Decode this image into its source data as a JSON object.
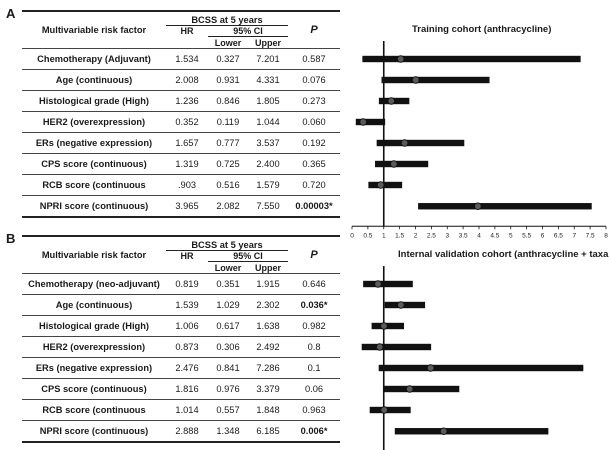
{
  "panels": [
    {
      "letter": "A",
      "plot_title": "Training cohort (anthracycline)",
      "header": {
        "factor": "Multivariable risk factor",
        "bcss": "BCSS at 5 years",
        "hr": "HR",
        "ci": "95% CI",
        "lower": "Lower",
        "upper": "Upper",
        "p": "P"
      },
      "rows": [
        {
          "factor": "Chemotherapy (Adjuvant)",
          "hr": "1.534",
          "lower": "0.327",
          "upper": "7.201",
          "p": "0.587",
          "p_bold": false
        },
        {
          "factor": "Age (continuous)",
          "hr": "2.008",
          "lower": "0.931",
          "upper": "4.331",
          "p": "0.076",
          "p_bold": false
        },
        {
          "factor": "Histological grade (High)",
          "hr": "1.236",
          "lower": "0.846",
          "upper": "1.805",
          "p": "0.273",
          "p_bold": false
        },
        {
          "factor": "HER2 (overexpression)",
          "hr": "0.352",
          "lower": "0.119",
          "upper": "1.044",
          "p": "0.060",
          "p_bold": false
        },
        {
          "factor": "ERs (negative expression)",
          "hr": "1.657",
          "lower": "0.777",
          "upper": "3.537",
          "p": "0.192",
          "p_bold": false
        },
        {
          "factor": "CPS score (continuous)",
          "hr": "1.319",
          "lower": "0.725",
          "upper": "2.400",
          "p": "0.365",
          "p_bold": false
        },
        {
          "factor": "RCB score (continuous",
          "hr": ".903",
          "lower": "0.516",
          "upper": "1.579",
          "p": "0.720",
          "p_bold": false
        },
        {
          "factor": "NPRI score (continuous)",
          "hr": "3.965",
          "lower": "2.082",
          "upper": "7.550",
          "p": "0.00003*",
          "p_bold": true
        }
      ],
      "x_ticks": [
        "0",
        "0.5",
        "1",
        "1.5",
        "2",
        "2.5",
        "3",
        "3.5",
        "4",
        "4.5",
        "5",
        "5.5",
        "6",
        "6.5",
        "7",
        "7.5",
        "8"
      ]
    },
    {
      "letter": "B",
      "plot_title": "Internal validation cohort (anthracycline + taxane)",
      "header": {
        "factor": "Multivariable risk factor",
        "bcss": "BCSS at 5 years",
        "hr": "HR",
        "ci": "95% CI",
        "lower": "Lower",
        "upper": "Upper",
        "p": "P"
      },
      "rows": [
        {
          "factor": "Chemotherapy (neo-adjuvant)",
          "hr": "0.819",
          "lower": "0.351",
          "upper": "1.915",
          "p": "0.646",
          "p_bold": false
        },
        {
          "factor": "Age (continuous)",
          "hr": "1.539",
          "lower": "1.029",
          "upper": "2.302",
          "p": "0.036*",
          "p_bold": true
        },
        {
          "factor": "Histological grade (High)",
          "hr": "1.006",
          "lower": "0.617",
          "upper": "1.638",
          "p": "0.982",
          "p_bold": false
        },
        {
          "factor": "HER2 (overexpression)",
          "hr": "0.873",
          "lower": "0.306",
          "upper": "2.492",
          "p": "0.8",
          "p_bold": false
        },
        {
          "factor": "ERs (negative expression)",
          "hr": "2.476",
          "lower": "0.841",
          "upper": "7.286",
          "p": "0.1",
          "p_bold": false
        },
        {
          "factor": "CPS score (continuous)",
          "hr": "1.816",
          "lower": "0.976",
          "upper": "3.379",
          "p": "0.06",
          "p_bold": false
        },
        {
          "factor": "RCB score (continuous",
          "hr": "1.014",
          "lower": "0.557",
          "upper": "1.848",
          "p": "0.963",
          "p_bold": false
        },
        {
          "factor": "NPRI score (continuous)",
          "hr": "2.888",
          "lower": "1.348",
          "upper": "6.185",
          "p": "0.006*",
          "p_bold": true
        }
      ],
      "x_ticks": [
        "0",
        "0.5",
        "1",
        "1.5",
        "2",
        "2.5",
        "3",
        "3.5",
        "4",
        "4.5",
        "5",
        "5.5",
        "6",
        "6.5",
        "7",
        "7.5",
        "8"
      ]
    }
  ],
  "chart_data": [
    {
      "type": "forest",
      "title": "Training cohort (anthracycline)",
      "xlim": [
        0,
        8
      ],
      "reference_line": 1,
      "categories": [
        "Chemotherapy (Adjuvant)",
        "Age (continuous)",
        "Histological grade (High)",
        "HER2 (overexpression)",
        "ERs (negative expression)",
        "CPS score (continuous)",
        "RCB score (continuous",
        "NPRI score (continuous)"
      ],
      "hr": [
        1.534,
        2.008,
        1.236,
        0.352,
        1.657,
        1.319,
        0.903,
        3.965
      ],
      "ci_lower": [
        0.327,
        0.931,
        0.846,
        0.119,
        0.777,
        0.725,
        0.516,
        2.082
      ],
      "ci_upper": [
        7.201,
        4.331,
        1.805,
        1.044,
        3.537,
        2.4,
        1.579,
        7.55
      ]
    },
    {
      "type": "forest",
      "title": "Internal validation cohort (anthracycline + taxane)",
      "xlim": [
        0,
        8
      ],
      "reference_line": 1,
      "categories": [
        "Chemotherapy (neo-adjuvant)",
        "Age (continuous)",
        "Histological grade (High)",
        "HER2 (overexpression)",
        "ERs (negative expression)",
        "CPS score (continuous)",
        "RCB score (continuous",
        "NPRI score (continuous)"
      ],
      "hr": [
        0.819,
        1.539,
        1.006,
        0.873,
        2.476,
        1.816,
        1.014,
        2.888
      ],
      "ci_lower": [
        0.351,
        1.029,
        0.617,
        0.306,
        0.841,
        0.976,
        0.557,
        1.348
      ],
      "ci_upper": [
        1.915,
        2.302,
        1.638,
        2.492,
        7.286,
        3.379,
        1.848,
        6.185
      ]
    }
  ]
}
